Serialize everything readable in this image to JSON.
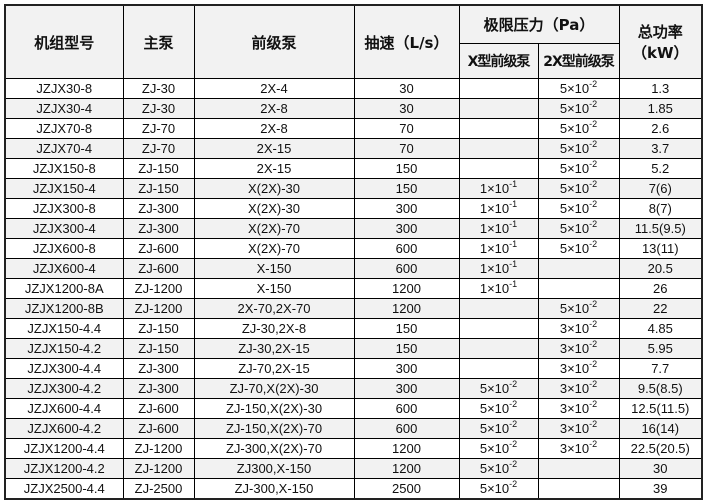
{
  "header": {
    "model": "机组型号",
    "main_pump": "主泵",
    "backing_pump": "前级泵",
    "speed": "抽速（L/s）",
    "ultimate_pressure": "极限压力（Pa）",
    "x_backing": "X型前级泵",
    "x2_backing": "2X型前级泵",
    "power": "总功率（kW）"
  },
  "rows": [
    {
      "model": "JZJX30-8",
      "main": "ZJ-30",
      "backing": "2X-4",
      "speed": "30",
      "px": null,
      "p2x": {
        "m": "5×10",
        "e": "-2"
      },
      "power": "1.3"
    },
    {
      "model": "JZJX30-4",
      "main": "ZJ-30",
      "backing": "2X-8",
      "speed": "30",
      "px": null,
      "p2x": {
        "m": "5×10",
        "e": "-2"
      },
      "power": "1.85"
    },
    {
      "model": "JZJX70-8",
      "main": "ZJ-70",
      "backing": "2X-8",
      "speed": "70",
      "px": null,
      "p2x": {
        "m": "5×10",
        "e": "-2"
      },
      "power": "2.6"
    },
    {
      "model": "JZJX70-4",
      "main": "ZJ-70",
      "backing": "2X-15",
      "speed": "70",
      "px": null,
      "p2x": {
        "m": "5×10",
        "e": "-2"
      },
      "power": "3.7"
    },
    {
      "model": "JZJX150-8",
      "main": "ZJ-150",
      "backing": "2X-15",
      "speed": "150",
      "px": null,
      "p2x": {
        "m": "5×10",
        "e": "-2"
      },
      "power": "5.2"
    },
    {
      "model": "JZJX150-4",
      "main": "ZJ-150",
      "backing": "X(2X)-30",
      "speed": "150",
      "px": {
        "m": "1×10",
        "e": "-1"
      },
      "p2x": {
        "m": "5×10",
        "e": "-2"
      },
      "power": "7(6)"
    },
    {
      "model": "JZJX300-8",
      "main": "ZJ-300",
      "backing": "X(2X)-30",
      "speed": "300",
      "px": {
        "m": "1×10",
        "e": "-1"
      },
      "p2x": {
        "m": "5×10",
        "e": "-2"
      },
      "power": "8(7)"
    },
    {
      "model": "JZJX300-4",
      "main": "ZJ-300",
      "backing": "X(2X)-70",
      "speed": "300",
      "px": {
        "m": "1×10",
        "e": "-1"
      },
      "p2x": {
        "m": "5×10",
        "e": "-2"
      },
      "power": "11.5(9.5)"
    },
    {
      "model": "JZJX600-8",
      "main": "ZJ-600",
      "backing": "X(2X)-70",
      "speed": "600",
      "px": {
        "m": "1×10",
        "e": "-1"
      },
      "p2x": {
        "m": "5×10",
        "e": "-2"
      },
      "power": "13(11)"
    },
    {
      "model": "JZJX600-4",
      "main": "ZJ-600",
      "backing": "X-150",
      "speed": "600",
      "px": {
        "m": "1×10",
        "e": "-1"
      },
      "p2x": null,
      "power": "20.5"
    },
    {
      "model": "JZJX1200-8A",
      "main": "ZJ-1200",
      "backing": "X-150",
      "speed": "1200",
      "px": {
        "m": "1×10",
        "e": "-1"
      },
      "p2x": null,
      "power": "26"
    },
    {
      "model": "JZJX1200-8B",
      "main": "ZJ-1200",
      "backing": "2X-70,2X-70",
      "speed": "1200",
      "px": null,
      "p2x": {
        "m": "5×10",
        "e": "-2"
      },
      "power": "22"
    },
    {
      "model": "JZJX150-4.4",
      "main": "ZJ-150",
      "backing": "ZJ-30,2X-8",
      "speed": "150",
      "px": null,
      "p2x": {
        "m": "3×10",
        "e": "-2"
      },
      "power": "4.85"
    },
    {
      "model": "JZJX150-4.2",
      "main": "ZJ-150",
      "backing": "ZJ-30,2X-15",
      "speed": "150",
      "px": null,
      "p2x": {
        "m": "3×10",
        "e": "-2"
      },
      "power": "5.95"
    },
    {
      "model": "JZJX300-4.4",
      "main": "ZJ-300",
      "backing": "ZJ-70,2X-15",
      "speed": "300",
      "px": null,
      "p2x": {
        "m": "3×10",
        "e": "-2"
      },
      "power": "7.7"
    },
    {
      "model": "JZJX300-4.2",
      "main": "ZJ-300",
      "backing": "ZJ-70,X(2X)-30",
      "speed": "300",
      "px": {
        "m": "5×10",
        "e": "-2"
      },
      "p2x": {
        "m": "3×10",
        "e": "-2"
      },
      "power": "9.5(8.5)"
    },
    {
      "model": "JZJX600-4.4",
      "main": "ZJ-600",
      "backing": "ZJ-150,X(2X)-30",
      "speed": "600",
      "px": {
        "m": "5×10",
        "e": "-2"
      },
      "p2x": {
        "m": "3×10",
        "e": "-2"
      },
      "power": "12.5(11.5)"
    },
    {
      "model": "JZJX600-4.2",
      "main": "ZJ-600",
      "backing": "ZJ-150,X(2X)-70",
      "speed": "600",
      "px": {
        "m": "5×10",
        "e": "-2"
      },
      "p2x": {
        "m": "3×10",
        "e": "-2"
      },
      "power": "16(14)"
    },
    {
      "model": "JZJX1200-4.4",
      "main": "ZJ-1200",
      "backing": "ZJ-300,X(2X)-70",
      "speed": "1200",
      "px": {
        "m": "5×10",
        "e": "-2"
      },
      "p2x": {
        "m": "3×10",
        "e": "-2"
      },
      "power": "22.5(20.5)"
    },
    {
      "model": "JZJX1200-4.2",
      "main": "ZJ-1200",
      "backing": "ZJ300,X-150",
      "speed": "1200",
      "px": {
        "m": "5×10",
        "e": "-2"
      },
      "p2x": null,
      "power": "30"
    },
    {
      "model": "JZJX2500-4.4",
      "main": "ZJ-2500",
      "backing": "ZJ-300,X-150",
      "speed": "2500",
      "px": {
        "m": "5×10",
        "e": "-2"
      },
      "p2x": null,
      "power": "39"
    }
  ]
}
